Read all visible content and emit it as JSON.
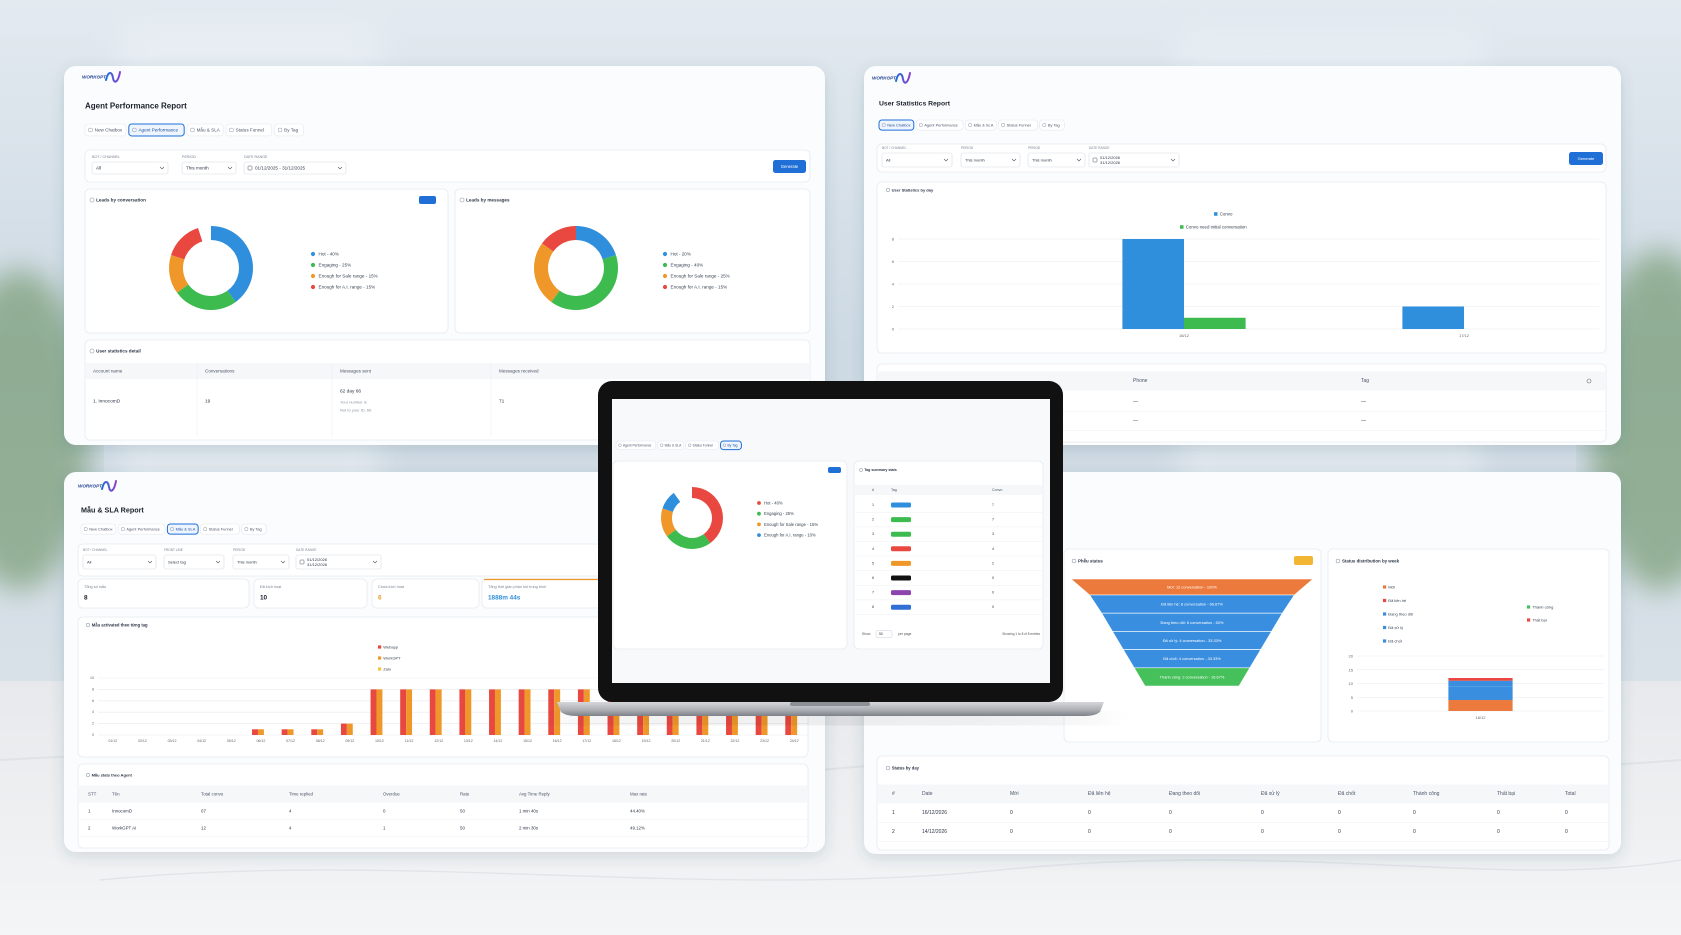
{
  "agent_report": {
    "logo": "WORKGPT",
    "title": "Agent Performance Report",
    "tabs": [
      "New Chatbox",
      "Agent Performance",
      "Mẫu & SLA",
      "Status Funnel",
      "By Tag"
    ],
    "active_tab": 1,
    "filters": [
      {
        "label": "BOT / CHANNEL",
        "value": "All"
      },
      {
        "label": "PERIOD",
        "value": "This month"
      },
      {
        "label": "DATE RANGE",
        "value": "01/12/2025 - 31/12/2025"
      }
    ],
    "generate": "Generate",
    "donuts": [
      {
        "type": "donut",
        "title": "Leads by conversation",
        "items": [
          {
            "label": "Hot - 40%",
            "value": 40,
            "color": "#2f8fdc"
          },
          {
            "label": "Engaging - 25%",
            "value": 25,
            "color": "#3dbb4f"
          },
          {
            "label": "Enough for Sale range - 15%",
            "value": 15,
            "color": "#f0972a"
          },
          {
            "label": "Enough for A.I. range - 15%",
            "value": 15,
            "color": "#e8483f"
          }
        ]
      },
      {
        "type": "donut",
        "title": "Leads by messages",
        "items": [
          {
            "label": "Hot - 20%",
            "value": 20,
            "color": "#2f8fdc"
          },
          {
            "label": "Engaging - 40%",
            "value": 40,
            "color": "#3dbb4f"
          },
          {
            "label": "Enough for Sale range - 25%",
            "value": 25,
            "color": "#f0972a"
          },
          {
            "label": "Enough for A.I. range - 15%",
            "value": 15,
            "color": "#e8483f"
          }
        ]
      }
    ],
    "detail": {
      "title": "User statistics detail",
      "columns": [
        "Account name",
        "Conversations",
        "Messages sent",
        "Messages received"
      ],
      "rows": [
        [
          "1. InnocomD",
          19,
          "62 day 66",
          71
        ]
      ],
      "notes": [
        "Your number is",
        "Not to your ID, 66"
      ]
    }
  },
  "user_report": {
    "logo": "WORKGPT",
    "title": "User Statistics Report",
    "tabs": [
      "New Chatbox",
      "Agent Performance",
      "Mẫu & SLA",
      "Status Funnel",
      "By Tag"
    ],
    "active_tab": 0,
    "filters": [
      {
        "label": "BOT / CHANNEL",
        "value": "All"
      },
      {
        "label": "PERIOD",
        "value": "This month"
      },
      {
        "label": "PERIOD",
        "value": "This month"
      },
      {
        "label": "DATE RANGE",
        "value": [
          "01/12/2026",
          "31/12/2026"
        ]
      }
    ],
    "generate": "Generate",
    "chart": {
      "type": "bar",
      "title": "User Statistics by day",
      "categories": [
        "16/12",
        "17/12"
      ],
      "series": [
        {
          "name": "Convo",
          "color": "#2f8fdc",
          "values": [
            8,
            2
          ]
        },
        {
          "name": "Convo need initial conversation",
          "color": "#3dbb4f",
          "values": [
            1,
            0
          ]
        }
      ],
      "ylim": [
        0,
        8
      ],
      "yticks": [
        0,
        2,
        4,
        6,
        8
      ]
    },
    "table": {
      "columns": [
        "Phone",
        "Tag"
      ],
      "rows": [
        [
          "—",
          "—"
        ],
        [
          "—",
          "—"
        ]
      ]
    }
  },
  "sla_report": {
    "logo": "WORKGPT",
    "title": "Mẫu & SLA Report",
    "tabs": [
      "New Chatbox",
      "Agent Performance",
      "Mẫu & SLA",
      "Status Funnel",
      "By Tag"
    ],
    "active_tab": 2,
    "filters": [
      {
        "label": "BOT / CHANNEL",
        "value": "All"
      },
      {
        "label": "FRONT LINE",
        "value": "Select tag"
      },
      {
        "label": "PERIOD",
        "value": "This month"
      },
      {
        "label": "DATE RANGE",
        "value": [
          "01/12/2026",
          "31/12/2026"
        ]
      }
    ],
    "stats": [
      {
        "label": "Tổng số mẫu",
        "value": 8
      },
      {
        "label": "Đã kích hoạt",
        "value": 10
      },
      {
        "label": "Chưa kích hoạt",
        "value": 6,
        "color": "#f0972a"
      },
      {
        "label": "Tổng thời gian phản hồi trung bình",
        "value": "1888m 44s",
        "color": "#2f8fdc"
      }
    ],
    "chart": {
      "type": "bar",
      "title": "Mẫu activated theo từng tag",
      "categories": [
        "01/12",
        "02/12",
        "03/12",
        "04/12",
        "05/12",
        "06/12",
        "07/12",
        "08/12",
        "09/12",
        "10/12",
        "11/12",
        "12/12",
        "13/12",
        "14/12",
        "15/12",
        "16/12",
        "17/12",
        "18/12",
        "19/12",
        "20/12",
        "21/12",
        "22/12",
        "23/12",
        "24/12"
      ],
      "series": [
        {
          "name": "Webapp",
          "color": "#e8483f",
          "values": [
            0,
            0,
            0,
            0,
            0,
            1,
            1,
            1,
            2,
            8,
            8,
            8,
            8,
            8,
            8,
            8,
            8,
            8,
            8,
            8,
            8,
            8,
            8,
            8
          ]
        },
        {
          "name": "WorkGPT",
          "color": "#f0972a",
          "values": [
            0,
            0,
            0,
            0,
            0,
            1,
            1,
            1,
            2,
            8,
            8,
            8,
            8,
            8,
            8,
            8,
            8,
            8,
            8,
            8,
            8,
            8,
            8,
            8
          ]
        },
        {
          "name": "Zalo",
          "color": "#f5c242",
          "values": [
            0,
            0,
            0,
            0,
            0,
            0,
            0,
            0,
            0,
            0,
            0,
            0,
            0,
            0,
            0,
            0,
            0,
            0,
            0,
            0,
            0,
            0,
            0,
            0
          ]
        }
      ],
      "ylim": [
        0,
        10
      ],
      "yticks": [
        0,
        2,
        4,
        6,
        8,
        10
      ]
    },
    "table": {
      "title": "Mẫu stats theo Agent",
      "columns": [
        "STT",
        "Tên",
        "Total convo",
        "Time replied",
        "Overdue",
        "Rate",
        "Avg Time Reply",
        "Max rate"
      ],
      "rows": [
        [
          1,
          "InnocomD",
          "07",
          4,
          0,
          50,
          "1 min 40s",
          "44.40%"
        ],
        [
          2,
          "WorkGPT AI",
          12,
          4,
          1,
          50,
          "2 min 30s",
          "49.12%"
        ]
      ]
    }
  },
  "funnel_report": {
    "funnel": {
      "title": "Phễu status",
      "levels": [
        {
          "label": "Mới: 12 conversation - 100%",
          "color": "#ec7a3c"
        },
        {
          "label": "Đã liên hệ: 8 conversation - 66.67%",
          "color": "#3a8ee0"
        },
        {
          "label": "Đang theo dõi: 6 conversation - 50%",
          "color": "#3a8ee0"
        },
        {
          "label": "Đã xử lý: 4 conversation - 33.33%",
          "color": "#3a8ee0"
        },
        {
          "label": "Đã chốt: 4 conversation - 33.33%",
          "color": "#3a8ee0"
        },
        {
          "label": "Thành công: 2 conversation - 16.67%",
          "color": "#46c05a"
        }
      ]
    },
    "distribution": {
      "type": "bar",
      "stacked": true,
      "title": "Status distribution by week",
      "categories": [
        "16/12"
      ],
      "series": [
        {
          "name": "Mới",
          "color": "#ec7a3c",
          "values": [
            4
          ]
        },
        {
          "name": "Đã liên hệ",
          "color": "#e8483f",
          "values": [
            0
          ]
        },
        {
          "name": "Đang theo dõi",
          "color": "#3a8ee0",
          "values": [
            2
          ]
        },
        {
          "name": "Đã xử lý",
          "color": "#3a8ee0",
          "values": [
            3
          ]
        },
        {
          "name": "Đã chốt",
          "color": "#3a8ee0",
          "values": [
            2
          ]
        },
        {
          "name": "Thành công",
          "color": "#46c05a",
          "values": [
            0
          ]
        },
        {
          "name": "Thất bại",
          "color": "#e8483f",
          "values": [
            1
          ]
        }
      ],
      "ylim": [
        0,
        20
      ],
      "yticks": [
        0,
        5,
        10,
        15,
        20
      ]
    },
    "status_by_day": {
      "title": "Status by day",
      "columns": [
        "#",
        "Date",
        "Mới",
        "Đã liên hệ",
        "Đang theo dõi",
        "Đã xử lý",
        "Đã chốt",
        "Thành công",
        "Thất bại",
        "Total"
      ],
      "rows": [
        [
          1,
          "16/12/2026",
          0,
          0,
          0,
          0,
          0,
          0,
          0,
          0
        ],
        [
          2,
          "14/12/2026",
          0,
          0,
          0,
          0,
          0,
          0,
          0,
          0
        ]
      ]
    }
  },
  "laptop_screen": {
    "tabs": [
      "Agent Performance",
      "Mẫu & SLA",
      "Status Funnel",
      "By Tag"
    ],
    "active_tab": 3,
    "donut": {
      "type": "donut",
      "items": [
        {
          "label": "Hot - 40%",
          "value": 40,
          "color": "#e8483f"
        },
        {
          "label": "Engaging - 25%",
          "value": 25,
          "color": "#3dbb4f"
        },
        {
          "label": "Enough for Sale range - 15%",
          "value": 15,
          "color": "#f0972a"
        },
        {
          "label": "Enough for A.I. range - 10%",
          "value": 10,
          "color": "#2f8fdc"
        }
      ]
    },
    "tag_table": {
      "title": "Tag summary stats",
      "columns": [
        "#",
        "Tag",
        "Convo"
      ],
      "rows": [
        {
          "no": 1,
          "color": "#2f8fdc",
          "convo": 7
        },
        {
          "no": 2,
          "color": "#3dbb4f",
          "convo": 7
        },
        {
          "no": 3,
          "color": "#3dbb4f",
          "convo": 3
        },
        {
          "no": 4,
          "color": "#e8483f",
          "convo": 4
        },
        {
          "no": 5,
          "color": "#f0972a",
          "convo": 2
        },
        {
          "no": 6,
          "color": "#111111",
          "convo": 0
        },
        {
          "no": 7,
          "color": "#8e44ad",
          "convo": 0
        },
        {
          "no": 8,
          "color": "#2f6fd6",
          "convo": 0
        }
      ]
    },
    "footer": {
      "show": "Show",
      "per_page_value": 50,
      "per_page": "per page",
      "entries": "Showing 1 to 8 of 8 entries"
    }
  }
}
